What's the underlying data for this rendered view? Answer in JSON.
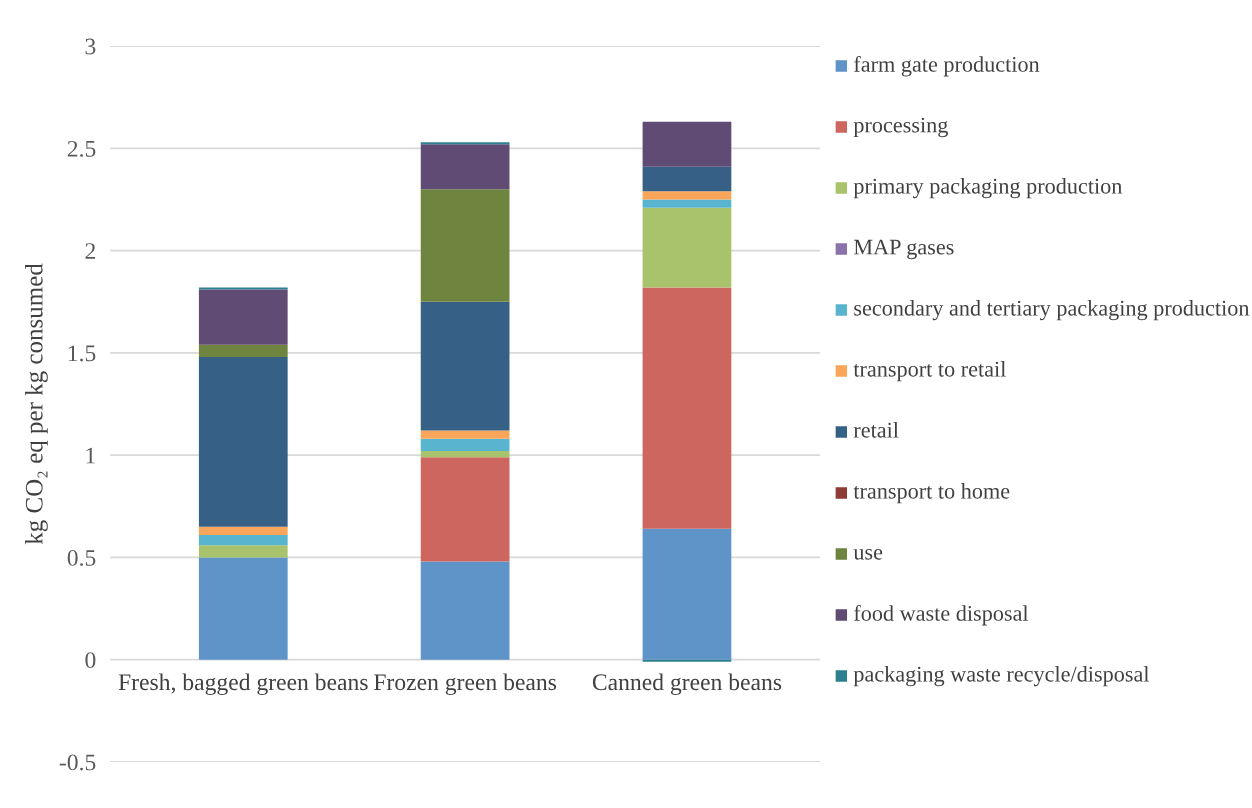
{
  "chart_data": {
    "type": "bar",
    "stacked": true,
    "ylabel": "kg CO₂ eq per kg consumed",
    "categories": [
      "Fresh, bagged green beans",
      "Frozen green beans",
      "Canned green beans"
    ],
    "series": [
      {
        "name": "farm gate production",
        "color": "#5f94c8",
        "values": [
          0.5,
          0.48,
          0.64
        ]
      },
      {
        "name": "processing",
        "color": "#cd665e",
        "values": [
          0,
          0.51,
          1.18
        ]
      },
      {
        "name": "primary packaging production",
        "color": "#a9c26c",
        "values": [
          0.06,
          0.03,
          0.39
        ]
      },
      {
        "name": "MAP gases",
        "color": "#8a72ab",
        "values": [
          0,
          0,
          0
        ]
      },
      {
        "name": "secondary and tertiary packaging production",
        "color": "#59b5cf",
        "values": [
          0.05,
          0.06,
          0.04
        ]
      },
      {
        "name": "transport to retail",
        "color": "#f9a65a",
        "values": [
          0.04,
          0.04,
          0.04
        ]
      },
      {
        "name": "retail",
        "color": "#376087",
        "values": [
          0.83,
          0.63,
          0.12
        ]
      },
      {
        "name": "transport to home",
        "color": "#8e3b35",
        "values": [
          0,
          0,
          0
        ]
      },
      {
        "name": "use",
        "color": "#6f843f",
        "values": [
          0.06,
          0.55,
          0
        ]
      },
      {
        "name": "food waste disposal",
        "color": "#5f4b74",
        "values": [
          0.27,
          0.22,
          0.22
        ]
      },
      {
        "name": "packaging waste recycle/disposal",
        "color": "#2e8090",
        "values": [
          0.01,
          0.01,
          -0.01
        ]
      }
    ],
    "ylim": [
      -0.5,
      3
    ],
    "yticks": [
      -0.5,
      0,
      0.5,
      1,
      1.5,
      2,
      2.5,
      3
    ],
    "grid": "y",
    "legend": "right"
  }
}
